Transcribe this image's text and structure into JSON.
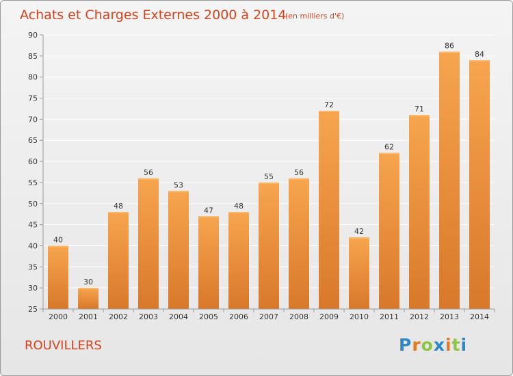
{
  "chart_data": {
    "type": "bar",
    "title": "Achats et Charges Externes 2000 à 2014",
    "subtitle": "(en milliers d'€)",
    "categories": [
      "2000",
      "2001",
      "2002",
      "2003",
      "2004",
      "2005",
      "2006",
      "2007",
      "2008",
      "2009",
      "2010",
      "2011",
      "2012",
      "2013",
      "2014"
    ],
    "values": [
      40,
      30,
      48,
      56,
      53,
      47,
      48,
      55,
      56,
      72,
      42,
      62,
      71,
      86,
      84
    ],
    "ylim": [
      25,
      90
    ],
    "yticks": [
      25,
      30,
      35,
      40,
      45,
      50,
      55,
      60,
      65,
      70,
      75,
      80,
      85,
      90
    ],
    "xlabel": "",
    "ylabel": "",
    "grid": true,
    "bar_color_top": "#f7a54e",
    "bar_color_bottom": "#d8782a"
  },
  "commune": "ROUVILLERS",
  "logo": {
    "letters": [
      "P",
      "r",
      "o",
      "x",
      "i",
      "t",
      "i"
    ],
    "colors": [
      "#2a88c8",
      "#e8781e",
      "#8cc63f",
      "#2a88c8",
      "#e8781e",
      "#8cc63f",
      "#2a88c8"
    ]
  }
}
